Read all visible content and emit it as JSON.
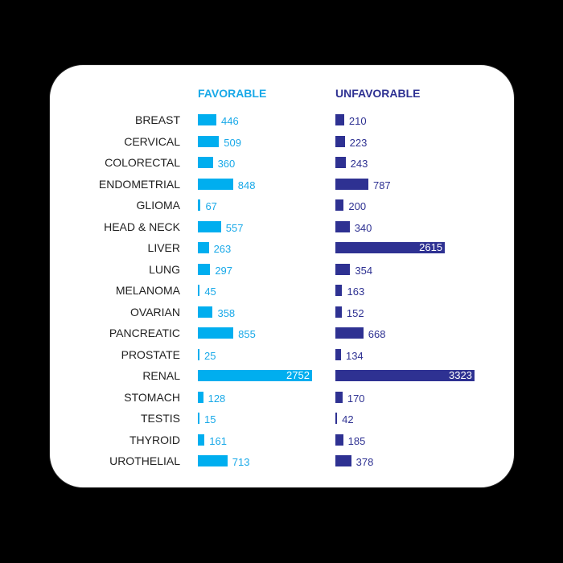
{
  "chart_data": {
    "type": "bar",
    "orientation": "horizontal",
    "categories": [
      "BREAST",
      "CERVICAL",
      "COLORECTAL",
      "ENDOMETRIAL",
      "GLIOMA",
      "HEAD & NECK",
      "LIVER",
      "LUNG",
      "MELANOMA",
      "OVARIAN",
      "PANCREATIC",
      "PROSTATE",
      "RENAL",
      "STOMACH",
      "TESTIS",
      "THYROID",
      "UROTHELIAL"
    ],
    "series": [
      {
        "name": "FAVORABLE",
        "color": "#00aeef",
        "values": [
          446,
          509,
          360,
          848,
          67,
          557,
          263,
          297,
          45,
          358,
          855,
          25,
          2752,
          128,
          15,
          161,
          713
        ]
      },
      {
        "name": "UNFAVORABLE",
        "color": "#2e3192",
        "values": [
          210,
          223,
          243,
          787,
          200,
          340,
          2615,
          354,
          163,
          152,
          668,
          134,
          3323,
          170,
          42,
          185,
          378
        ]
      }
    ],
    "title": "",
    "xlabel": "",
    "ylabel": "",
    "grid": false,
    "legend_position": "column headers"
  },
  "headers": {
    "favorable": "FAVORABLE",
    "unfavorable": "UNFAVORABLE"
  }
}
